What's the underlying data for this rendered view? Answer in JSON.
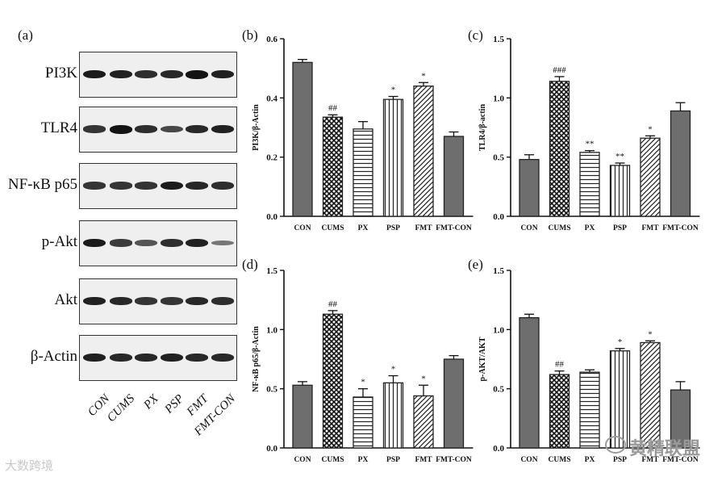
{
  "panel_letters": [
    "(a)",
    "(b)",
    "(c)",
    "(d)",
    "(e)"
  ],
  "blot": {
    "rows": [
      {
        "label": "PI3K",
        "intensity": [
          0.95,
          0.9,
          0.8,
          0.85,
          1.0,
          0.9
        ]
      },
      {
        "label": "TLR4",
        "intensity": [
          0.75,
          1.0,
          0.8,
          0.6,
          0.85,
          0.9
        ]
      },
      {
        "label": "NF-κB p65",
        "intensity": [
          0.75,
          0.75,
          0.75,
          0.95,
          0.85,
          0.8
        ]
      },
      {
        "label": "p-Akt",
        "intensity": [
          0.95,
          0.7,
          0.5,
          0.8,
          0.9,
          0.25
        ]
      },
      {
        "label": "Akt",
        "intensity": [
          0.9,
          0.85,
          0.75,
          0.75,
          0.85,
          0.8
        ]
      },
      {
        "label": "β-Actin",
        "intensity": [
          0.9,
          0.85,
          0.85,
          0.9,
          0.85,
          0.85
        ]
      }
    ],
    "lanes": [
      "CON",
      "CUMS",
      "PX",
      "PSP",
      "FMT",
      "FMT-CON"
    ]
  },
  "chart_data": [
    {
      "type": "bar",
      "panel": "(b)",
      "ylabel": "PI3K/β-Actin",
      "ylim": [
        0,
        0.6
      ],
      "yticks": [
        "0.0",
        "0.2",
        "0.4",
        "0.6"
      ],
      "ytick_values": [
        0,
        0.2,
        0.4,
        0.6
      ],
      "categories": [
        "CON",
        "CUMS",
        "PX",
        "PSP",
        "FMT",
        "FMT-CON"
      ],
      "values": [
        0.52,
        0.335,
        0.295,
        0.395,
        0.44,
        0.27
      ],
      "errors": [
        0.01,
        0.008,
        0.025,
        0.01,
        0.012,
        0.015
      ],
      "annotations": [
        "",
        "##",
        "",
        "*",
        "*",
        ""
      ]
    },
    {
      "type": "bar",
      "panel": "(c)",
      "ylabel": "TLR4/β-actin",
      "ylim": [
        0,
        1.5
      ],
      "yticks": [
        "0.0",
        "0.5",
        "1.0",
        "1.5"
      ],
      "ytick_values": [
        0,
        0.5,
        1.0,
        1.5
      ],
      "categories": [
        "CON",
        "CUMS",
        "PX",
        "PSP",
        "FMT",
        "FMT-CON"
      ],
      "values": [
        0.48,
        1.14,
        0.54,
        0.43,
        0.66,
        0.89
      ],
      "errors": [
        0.04,
        0.04,
        0.015,
        0.02,
        0.02,
        0.07
      ],
      "annotations": [
        "",
        "###",
        "**",
        "**",
        "*",
        ""
      ]
    },
    {
      "type": "bar",
      "panel": "(d)",
      "ylabel": "NF-κB p65/β-Actin",
      "ylim": [
        0,
        1.5
      ],
      "yticks": [
        "0.0",
        "0.5",
        "1.0",
        "1.5"
      ],
      "ytick_values": [
        0,
        0.5,
        1.0,
        1.5
      ],
      "categories": [
        "CON",
        "CUMS",
        "PX",
        "PSP",
        "FMT",
        "FMT-CON"
      ],
      "values": [
        0.53,
        1.13,
        0.43,
        0.55,
        0.44,
        0.75
      ],
      "errors": [
        0.03,
        0.03,
        0.07,
        0.06,
        0.09,
        0.03
      ],
      "annotations": [
        "",
        "##",
        "*",
        "*",
        "*",
        ""
      ]
    },
    {
      "type": "bar",
      "panel": "(e)",
      "ylabel": "p-AKT/AKT",
      "ylim": [
        0,
        1.5
      ],
      "yticks": [
        "0.0",
        "0.5",
        "1.0",
        "1.5"
      ],
      "ytick_values": [
        0,
        0.5,
        1.0,
        1.5
      ],
      "categories": [
        "CON",
        "CUMS",
        "PX",
        "PSP",
        "FMT",
        "FMT-CON"
      ],
      "values": [
        1.1,
        0.62,
        0.64,
        0.82,
        0.89,
        0.49
      ],
      "errors": [
        0.03,
        0.03,
        0.02,
        0.02,
        0.015,
        0.07
      ],
      "annotations": [
        "",
        "##",
        "",
        "*",
        "*",
        ""
      ]
    }
  ],
  "colors": {
    "bar_fill": "#6e6e6e",
    "bar_stroke": "#222222",
    "axis": "#111111"
  },
  "watermarks": {
    "left": "大数跨境",
    "right": "黄精联盟"
  }
}
